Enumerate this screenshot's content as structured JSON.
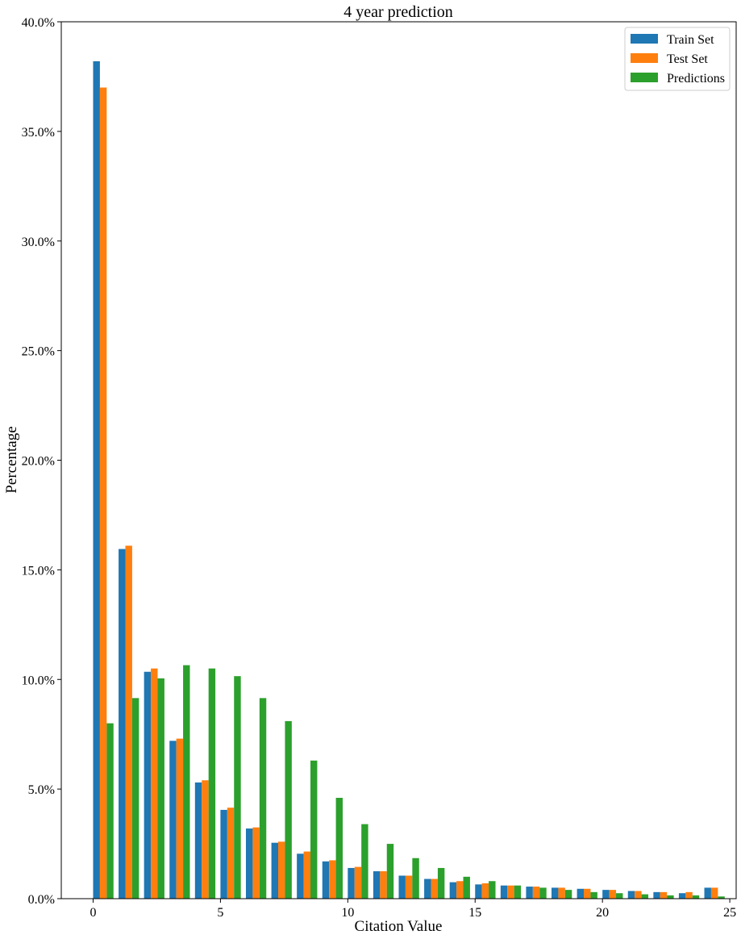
{
  "chart_data": {
    "type": "bar",
    "title": "4 year prediction",
    "xlabel": "Citation Value",
    "ylabel": "Percentage",
    "x": [
      0,
      1,
      2,
      3,
      4,
      5,
      6,
      7,
      8,
      9,
      10,
      11,
      12,
      13,
      14,
      15,
      16,
      17,
      18,
      19,
      20,
      21,
      22,
      23,
      24
    ],
    "xlim": [
      -1.25,
      25.25
    ],
    "ylim": [
      0,
      40
    ],
    "xticks": [
      0,
      5,
      10,
      15,
      20,
      25
    ],
    "xtick_labels": [
      "0",
      "5",
      "10",
      "15",
      "20",
      "25"
    ],
    "yticks": [
      0,
      5,
      10,
      15,
      20,
      25,
      30,
      35,
      40
    ],
    "ytick_labels": [
      "0.0%",
      "5.0%",
      "10.0%",
      "15.0%",
      "20.0%",
      "25.0%",
      "30.0%",
      "35.0%",
      "40.0%"
    ],
    "grid": false,
    "legend_position": "top-right",
    "series": [
      {
        "name": "Train Set",
        "color": "#1f77b4",
        "values": [
          38.2,
          15.95,
          10.35,
          7.2,
          5.3,
          4.05,
          3.2,
          2.55,
          2.05,
          1.7,
          1.4,
          1.25,
          1.05,
          0.9,
          0.75,
          0.65,
          0.6,
          0.55,
          0.5,
          0.45,
          0.4,
          0.35,
          0.3,
          0.25,
          0.5
        ]
      },
      {
        "name": "Test Set",
        "color": "#ff7f0e",
        "values": [
          37.0,
          16.1,
          10.5,
          7.3,
          5.4,
          4.15,
          3.25,
          2.6,
          2.15,
          1.75,
          1.45,
          1.25,
          1.05,
          0.9,
          0.8,
          0.7,
          0.6,
          0.55,
          0.5,
          0.45,
          0.4,
          0.35,
          0.3,
          0.3,
          0.5
        ]
      },
      {
        "name": "Predictions",
        "color": "#2ca02c",
        "values": [
          8.0,
          9.15,
          10.05,
          10.65,
          10.5,
          10.15,
          9.15,
          8.1,
          6.3,
          4.6,
          3.4,
          2.5,
          1.85,
          1.4,
          1.0,
          0.8,
          0.6,
          0.5,
          0.4,
          0.3,
          0.25,
          0.2,
          0.15,
          0.15,
          0.1
        ]
      }
    ]
  }
}
